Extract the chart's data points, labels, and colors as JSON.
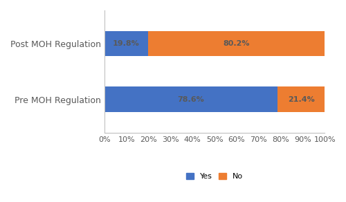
{
  "categories": [
    "Pre MOH Regulation",
    "Post MOH Regulation"
  ],
  "yes_values": [
    78.6,
    19.8
  ],
  "no_values": [
    21.4,
    80.2
  ],
  "yes_color": "#4472C4",
  "no_color": "#ED7D31",
  "yes_label": "Yes",
  "no_label": "No",
  "xlim": [
    0,
    1
  ],
  "xtick_labels": [
    "0%",
    "10%",
    "20%",
    "30%",
    "40%",
    "50%",
    "60%",
    "70%",
    "80%",
    "90%",
    "100%"
  ],
  "xtick_values": [
    0,
    0.1,
    0.2,
    0.3,
    0.4,
    0.5,
    0.6,
    0.7,
    0.8,
    0.9,
    1.0
  ],
  "bar_label_fontsize": 8,
  "tick_fontsize": 8,
  "ytick_fontsize": 9,
  "legend_fontsize": 8,
  "bar_height": 0.45,
  "text_color": "#595959",
  "label_text_color": "#595959",
  "spine_color": "#BFBFBF"
}
